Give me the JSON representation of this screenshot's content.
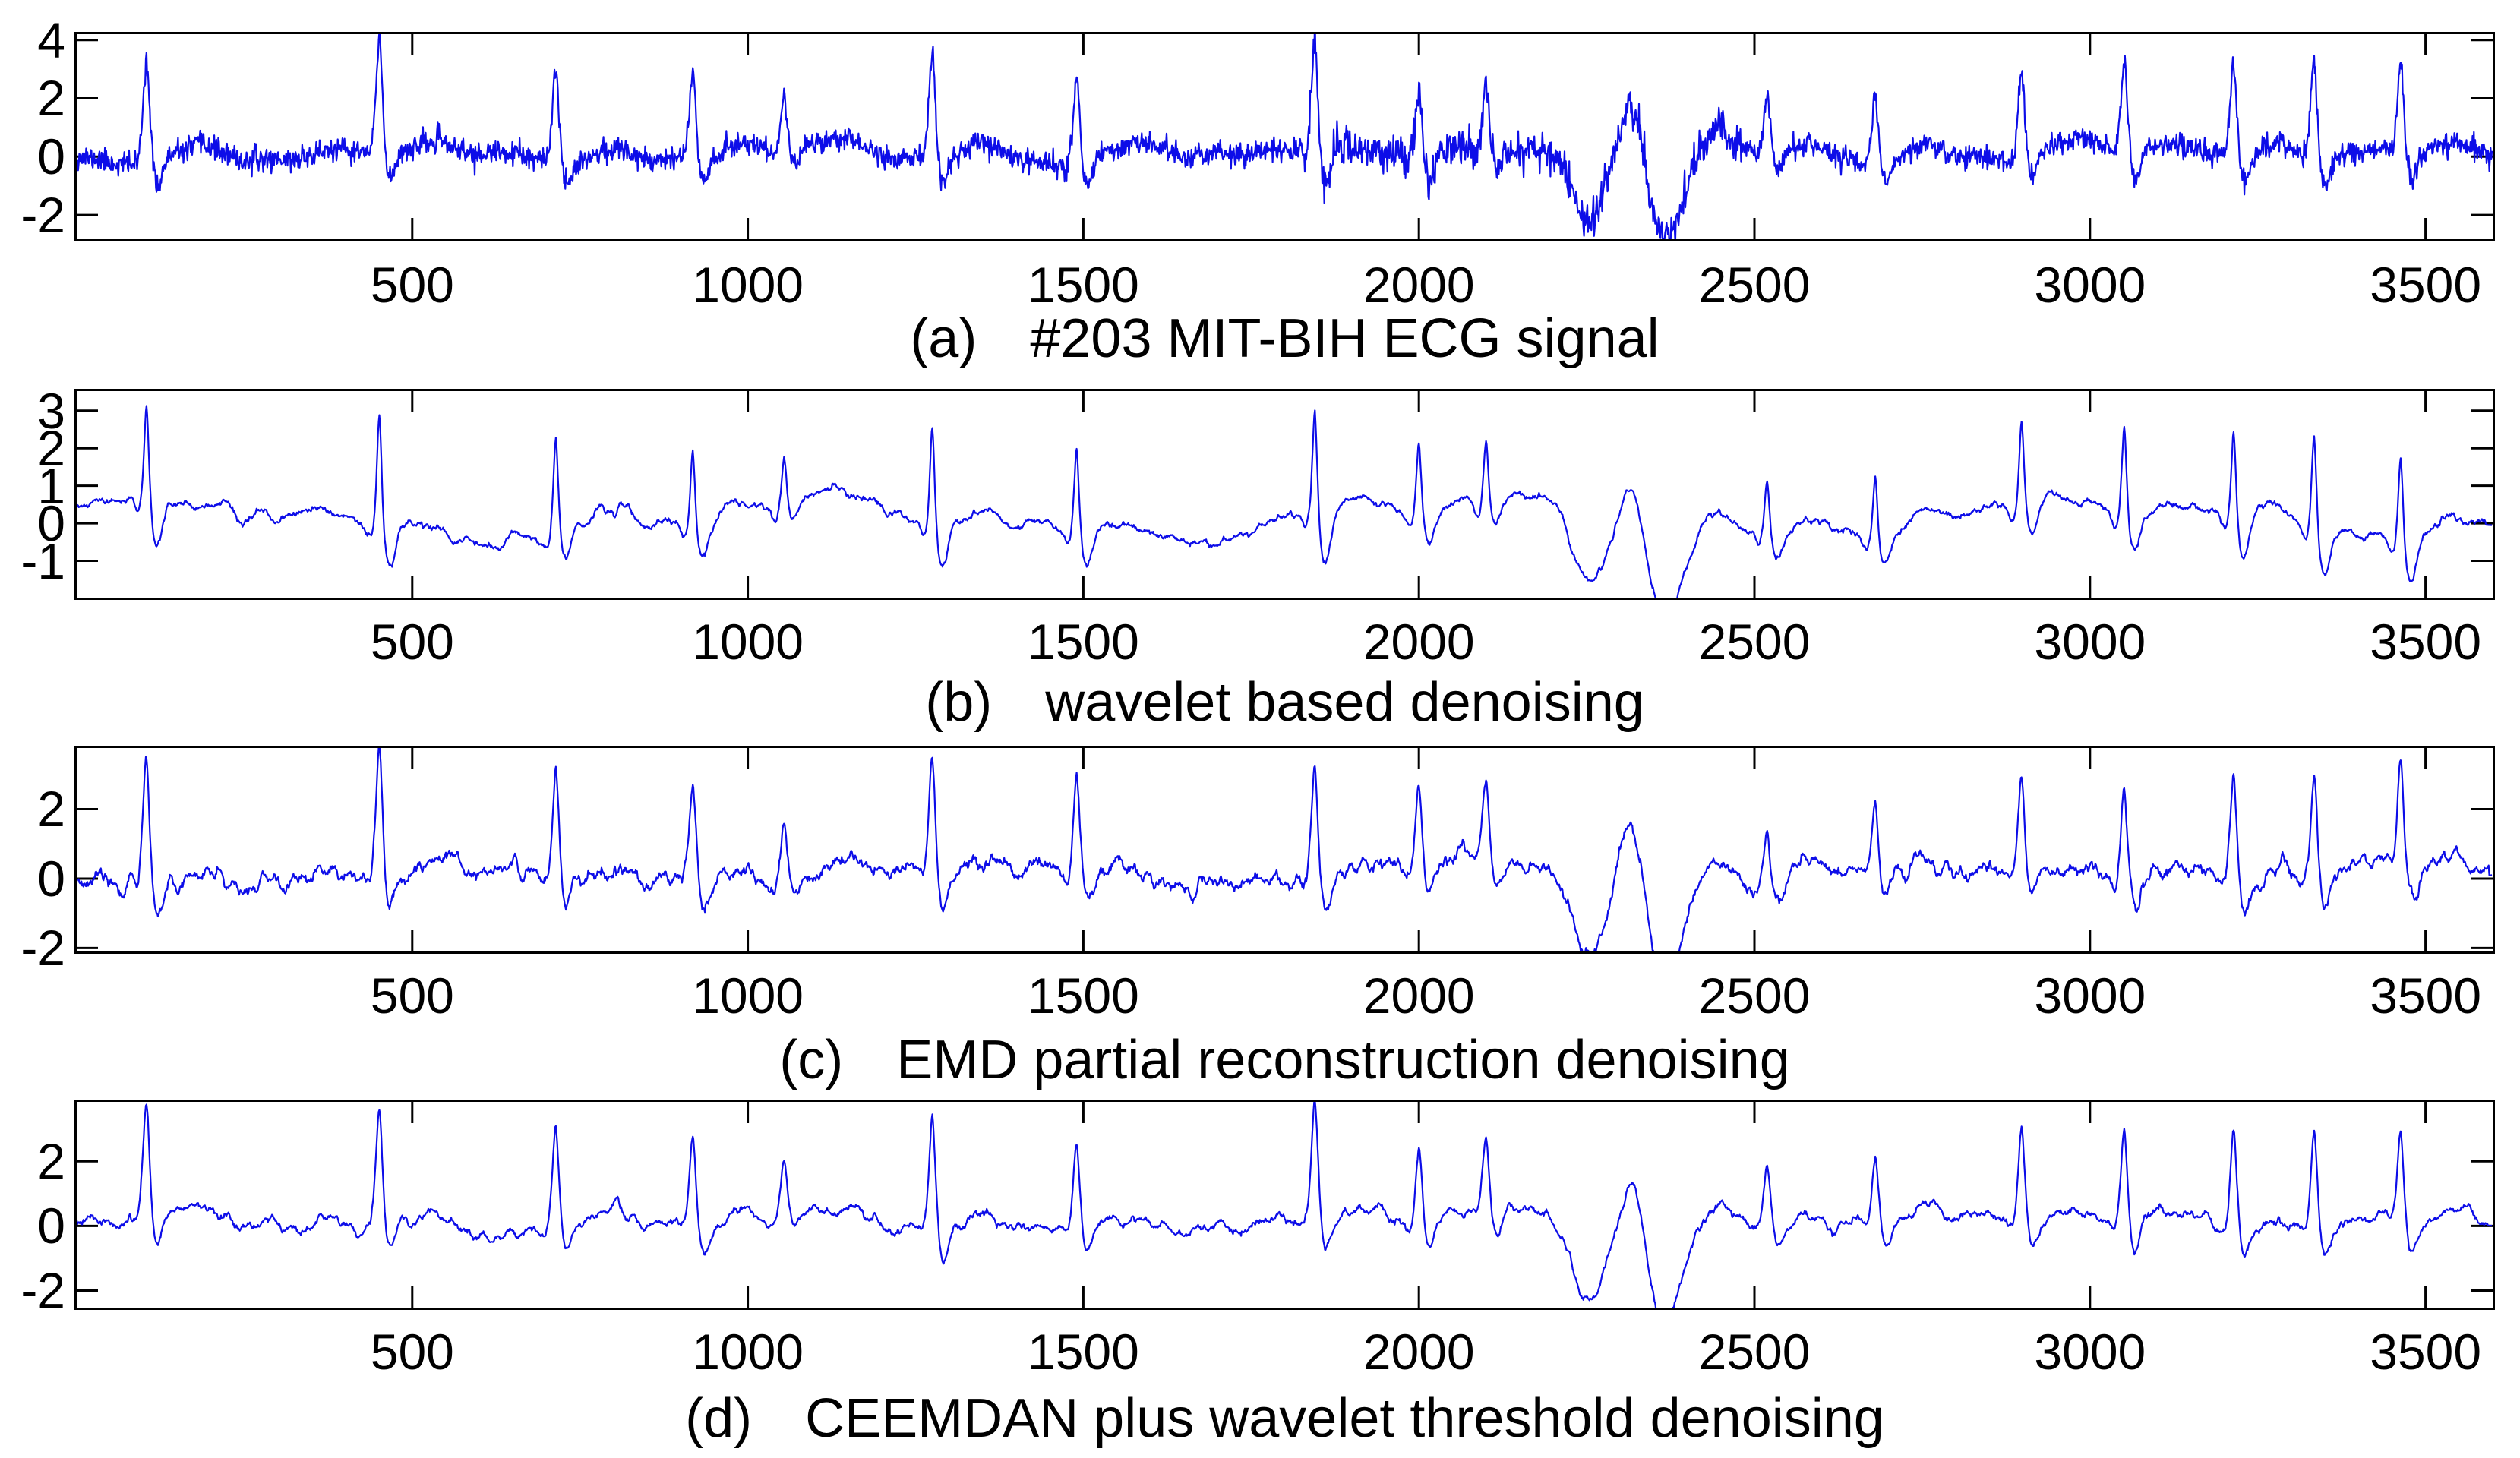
{
  "figure": {
    "background": "#ffffff",
    "line_color": "#0d0de8",
    "axis_color": "#000000",
    "text_color": "#000000"
  },
  "chart_data": [
    {
      "id": "a",
      "type": "line",
      "title_index": "(a)",
      "title": "#203 MIT-BIH ECG signal",
      "xlim": [
        0,
        3600
      ],
      "ylim": [
        -2.83,
        4.2
      ],
      "xticks": [
        500,
        1000,
        1500,
        2000,
        2500,
        3000,
        3500
      ],
      "yticks": [
        4,
        2,
        0,
        -2
      ],
      "grid": false,
      "line_width": 2.2,
      "gen": {
        "amp": 1.05,
        "r_sigma": 7,
        "q_scale": 1,
        "s_scale": 1,
        "noise_sigma": 0.2,
        "noise_smooth": 1,
        "burst_from": 1830,
        "burst_to": 2480,
        "burst_sigma": 0.27,
        "wander_amp": 0.16,
        "wander_period": 640,
        "flutter_amp": 0.06,
        "seed": 11
      }
    },
    {
      "id": "b",
      "type": "line",
      "title_index": "(b)",
      "title": "wavelet based denoising",
      "xlim": [
        0,
        3600
      ],
      "ylim": [
        -1.98,
        3.52
      ],
      "xticks": [
        500,
        1000,
        1500,
        2000,
        2500,
        3000,
        3500
      ],
      "yticks": [
        3,
        2,
        1,
        0,
        -1
      ],
      "grid": false,
      "line_width": 2.2,
      "gen": {
        "amp": 0.78,
        "r_sigma": 5,
        "q_scale": 2.8,
        "s_scale": 1.5,
        "noise_sigma": 0.45,
        "noise_smooth": 21,
        "burst_sigma": 0,
        "wander_amp": 0.42,
        "wander_period": 950,
        "flutter_amp": 0.05,
        "seed": 23
      }
    },
    {
      "id": "c",
      "type": "line",
      "title_index": "(c)",
      "title": "EMD partial reconstruction denoising",
      "xlim": [
        0,
        3600
      ],
      "ylim": [
        -2.1,
        3.76
      ],
      "xticks": [
        500,
        1000,
        1500,
        2000,
        2500,
        3000,
        3500
      ],
      "yticks": [
        2,
        0,
        -2
      ],
      "grid": false,
      "line_width": 2.2,
      "gen": {
        "amp": 1.0,
        "r_sigma": 7,
        "q_scale": 1,
        "s_scale": 1,
        "noise_sigma": 0.5,
        "noise_smooth": 11,
        "burst_sigma": 0,
        "wander_amp": 0.2,
        "wander_period": 760,
        "flutter_amp": 0.1,
        "seed": 37
      }
    },
    {
      "id": "d",
      "type": "line",
      "title_index": "(d)",
      "title": "CEEMDAN plus wavelet threshold denoising",
      "xlim": [
        0,
        3600
      ],
      "ylim": [
        -2.53,
        3.84
      ],
      "xticks": [
        500,
        1000,
        1500,
        2000,
        2500,
        3000,
        3500
      ],
      "yticks": [
        2,
        0,
        -2
      ],
      "grid": false,
      "line_width": 2.2,
      "gen": {
        "amp": 1.0,
        "r_sigma": 7,
        "q_scale": 1,
        "s_scale": 1,
        "noise_sigma": 0.45,
        "noise_smooth": 15,
        "burst_sigma": 0,
        "wander_amp": 0.18,
        "wander_period": 900,
        "flutter_amp": 0.09,
        "seed": 53
      }
    }
  ],
  "shared_signal": {
    "samples": 3600,
    "r_peaks": [
      {
        "x": 104,
        "r": 3.5
      },
      {
        "x": 451,
        "r": 3.7
      },
      {
        "x": 714,
        "r": 3.2
      },
      {
        "x": 918,
        "r": 2.9
      },
      {
        "x": 1054,
        "r": 1.9
      },
      {
        "x": 1275,
        "r": 3.6
      },
      {
        "x": 1490,
        "r": 3.0
      },
      {
        "x": 1845,
        "r": 3.8
      },
      {
        "x": 2000,
        "r": 2.6
      },
      {
        "x": 2100,
        "r": 2.4
      },
      {
        "x": 2519,
        "r": 2.0
      },
      {
        "x": 2680,
        "r": 2.3
      },
      {
        "x": 2898,
        "r": 3.0
      },
      {
        "x": 3051,
        "r": 3.1
      },
      {
        "x": 3214,
        "r": 3.2
      },
      {
        "x": 3334,
        "r": 3.4
      },
      {
        "x": 3463,
        "r": 3.1
      }
    ],
    "aberrant_events": [
      {
        "x": 2251,
        "a": -2.2,
        "w": 22
      },
      {
        "x": 2319,
        "a": 1.7,
        "w": 16
      },
      {
        "x": 2367,
        "a": -2.75,
        "w": 24
      },
      {
        "x": 2443,
        "a": 0.9,
        "w": 20
      }
    ],
    "morphology": {
      "q_amp": -0.16,
      "q_offset": -13,
      "q_sigma": 5,
      "s_ratio": 0.27,
      "s_offset": 15,
      "s_sigma": 8,
      "t_amp": 0.42,
      "t_offset": 78,
      "t_sigma": 30
    }
  }
}
